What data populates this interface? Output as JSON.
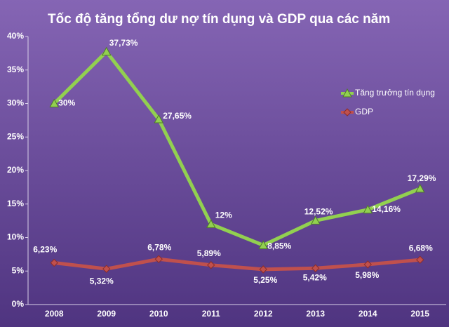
{
  "chart_data": {
    "type": "line",
    "title": "Tốc độ tăng tổng dư nợ tín dụng và GDP qua các năm",
    "categories": [
      "2008",
      "2009",
      "2010",
      "2011",
      "2012",
      "2013",
      "2014",
      "2015"
    ],
    "series": [
      {
        "name": "Tăng trưởng tín dụng",
        "color": "#92d050",
        "marker": "triangle",
        "values": [
          30,
          37.73,
          27.65,
          12,
          8.85,
          12.52,
          14.16,
          17.29
        ],
        "value_labels": [
          "30%",
          "37,73%",
          "27,65%",
          "12%",
          "8,85%",
          "12,52%",
          "14,16%",
          "17,29%"
        ]
      },
      {
        "name": "GDP",
        "color": "#c0504d",
        "marker": "diamond",
        "values": [
          6.23,
          5.32,
          6.78,
          5.89,
          5.25,
          5.42,
          5.98,
          6.68
        ],
        "value_labels": [
          "6,23%",
          "5,32%",
          "6,78%",
          "5,89%",
          "5,25%",
          "5,42%",
          "5,98%",
          "6,68%"
        ]
      }
    ],
    "ylim": [
      0,
      40
    ],
    "yticks": [
      {
        "value": 0,
        "label": "0%"
      },
      {
        "value": 5,
        "label": "5%"
      },
      {
        "value": 10,
        "label": "10%"
      },
      {
        "value": 15,
        "label": "15%"
      },
      {
        "value": 20,
        "label": "20%"
      },
      {
        "value": 25,
        "label": "25%"
      },
      {
        "value": 30,
        "label": "30%"
      },
      {
        "value": 35,
        "label": "35%"
      },
      {
        "value": 40,
        "label": "40%"
      }
    ],
    "grid": false,
    "legend": "right"
  }
}
